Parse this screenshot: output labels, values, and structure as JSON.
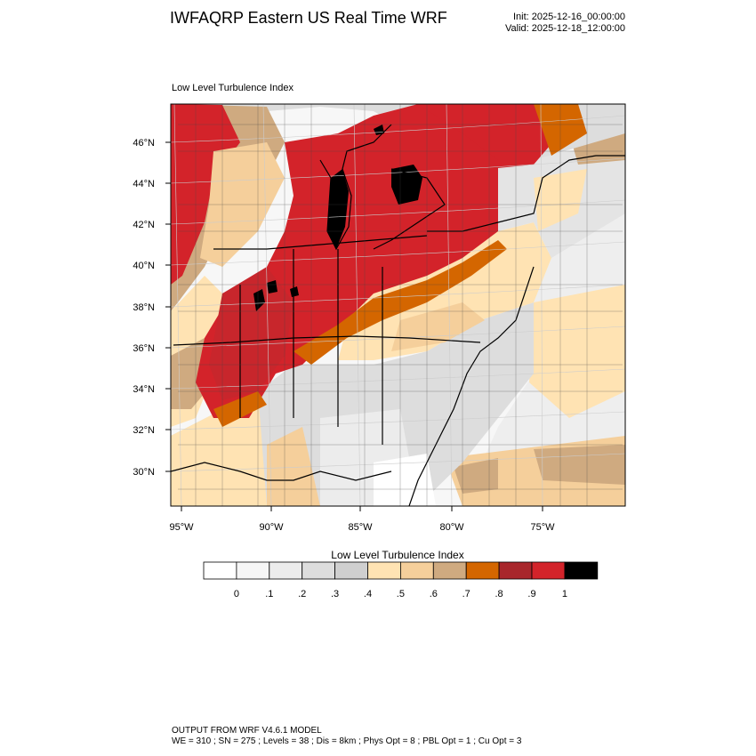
{
  "header": {
    "title": "IWFAQRP Eastern US Real Time WRF",
    "init": "Init: 2025-12-16_00:00:00",
    "valid": "Valid: 2025-12-18_12:00:00"
  },
  "map": {
    "panel_title": "Low Level Turbulence Index",
    "lat_labels": [
      "46°N",
      "44°N",
      "42°N",
      "40°N",
      "38°N",
      "36°N",
      "34°N",
      "32°N",
      "30°N"
    ],
    "lon_labels": [
      "95°W",
      "90°W",
      "85°W",
      "80°W",
      "75°W"
    ]
  },
  "colorbar": {
    "title": "Low Level Turbulence Index",
    "ticks": [
      "0",
      ".1",
      ".2",
      ".3",
      ".4",
      ".5",
      ".6",
      ".7",
      ".8",
      ".9",
      "1"
    ],
    "colors": [
      "#ffffff",
      "#f6f6f6",
      "#ececec",
      "#dddddd",
      "#cfcfcf",
      "#ffe3b3",
      "#f5cf9b",
      "#cfaa80",
      "#d46600",
      "#a8262b",
      "#d3232a",
      "#000000"
    ]
  },
  "footer": {
    "line1": "OUTPUT FROM WRF V4.6.1 MODEL",
    "line2": "WE = 310 ; SN = 275 ; Levels = 38 ; Dis = 8km ; Phys Opt = 8 ; PBL Opt = 1 ; Cu Opt = 3"
  }
}
